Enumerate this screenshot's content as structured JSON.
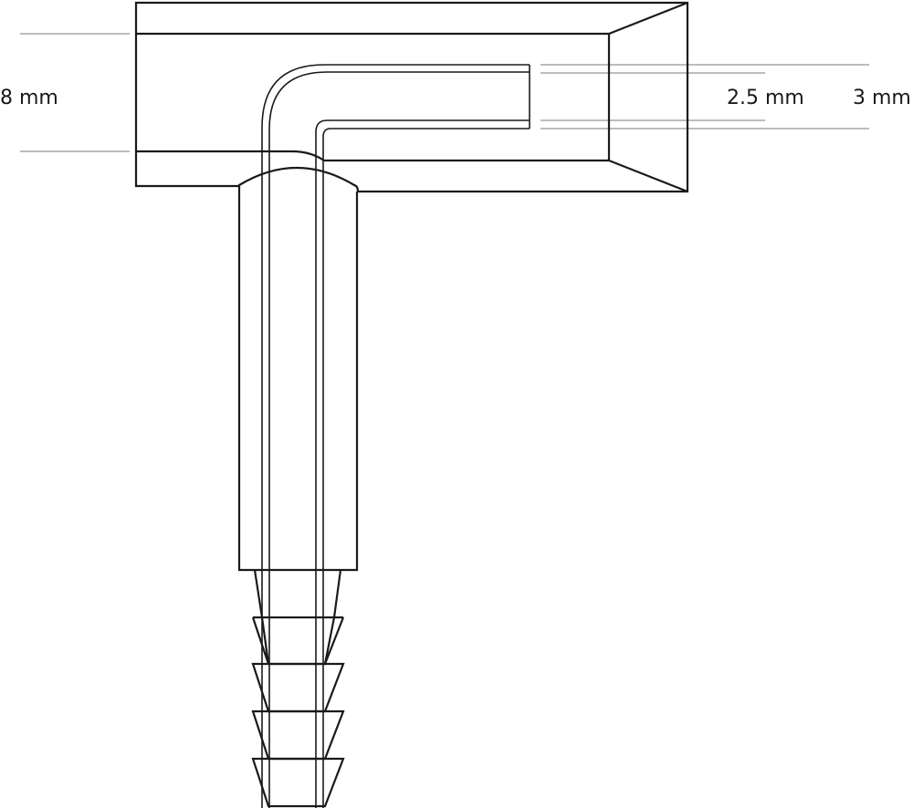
{
  "diagram": {
    "labels": {
      "outer_height": "8 mm",
      "inner_bore": "2.5 mm",
      "channel_height": "3 mm"
    },
    "stroke_color": "#1a1a1a",
    "dimension_line_color": "#7a7a7a"
  }
}
